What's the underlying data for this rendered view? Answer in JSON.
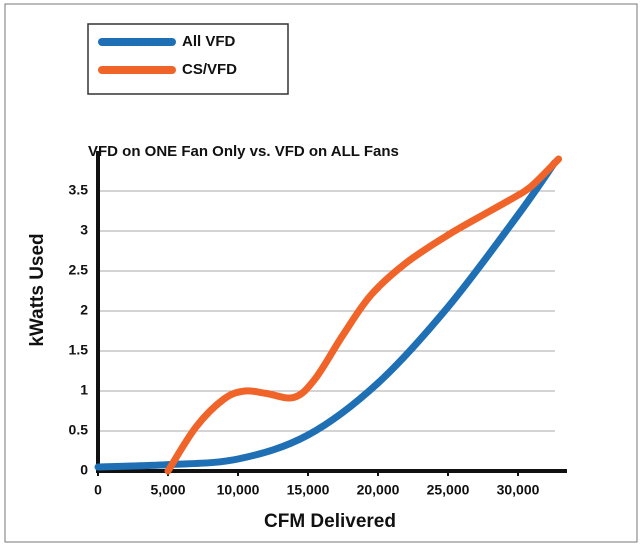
{
  "chart_data": {
    "type": "line",
    "title": "VFD  on ONE Fan Only    vs.  VFD on ALL Fans",
    "xlabel": "CFM Delivered",
    "ylabel": "kWatts Used",
    "xlim": [
      0,
      33500
    ],
    "ylim": [
      0,
      4
    ],
    "xticks": [
      0,
      {
        "value": 5000,
        "label": "5,000"
      },
      {
        "value": 10000,
        "label": "10,000"
      },
      {
        "value": 15000,
        "label": "15,000"
      },
      {
        "value": 20000,
        "label": "20,000"
      },
      {
        "value": 25000,
        "label": "25,000"
      },
      {
        "value": 30000,
        "label": "30,000"
      }
    ],
    "yticks": [
      0,
      0.5,
      1,
      1.5,
      2,
      2.5,
      3,
      3.5
    ],
    "grid": true,
    "legend": "top-left",
    "series": [
      {
        "name": "All VFD",
        "color": "#1f6fb5",
        "x": [
          0,
          5000,
          10000,
          15000,
          20000,
          25000,
          30000,
          32600
        ],
        "values": [
          0.05,
          0.08,
          0.15,
          0.45,
          1.1,
          2.05,
          3.2,
          3.85
        ]
      },
      {
        "name": "CS/VFD",
        "color": "#f0642a",
        "x": [
          5000,
          7000,
          9000,
          10500,
          12000,
          14000,
          15500,
          17500,
          19500,
          22000,
          25000,
          28000,
          30500,
          31500,
          32900
        ],
        "values": [
          0,
          0.55,
          0.9,
          1.0,
          0.97,
          0.92,
          1.15,
          1.7,
          2.2,
          2.6,
          2.95,
          3.25,
          3.5,
          3.65,
          3.9
        ]
      }
    ]
  }
}
